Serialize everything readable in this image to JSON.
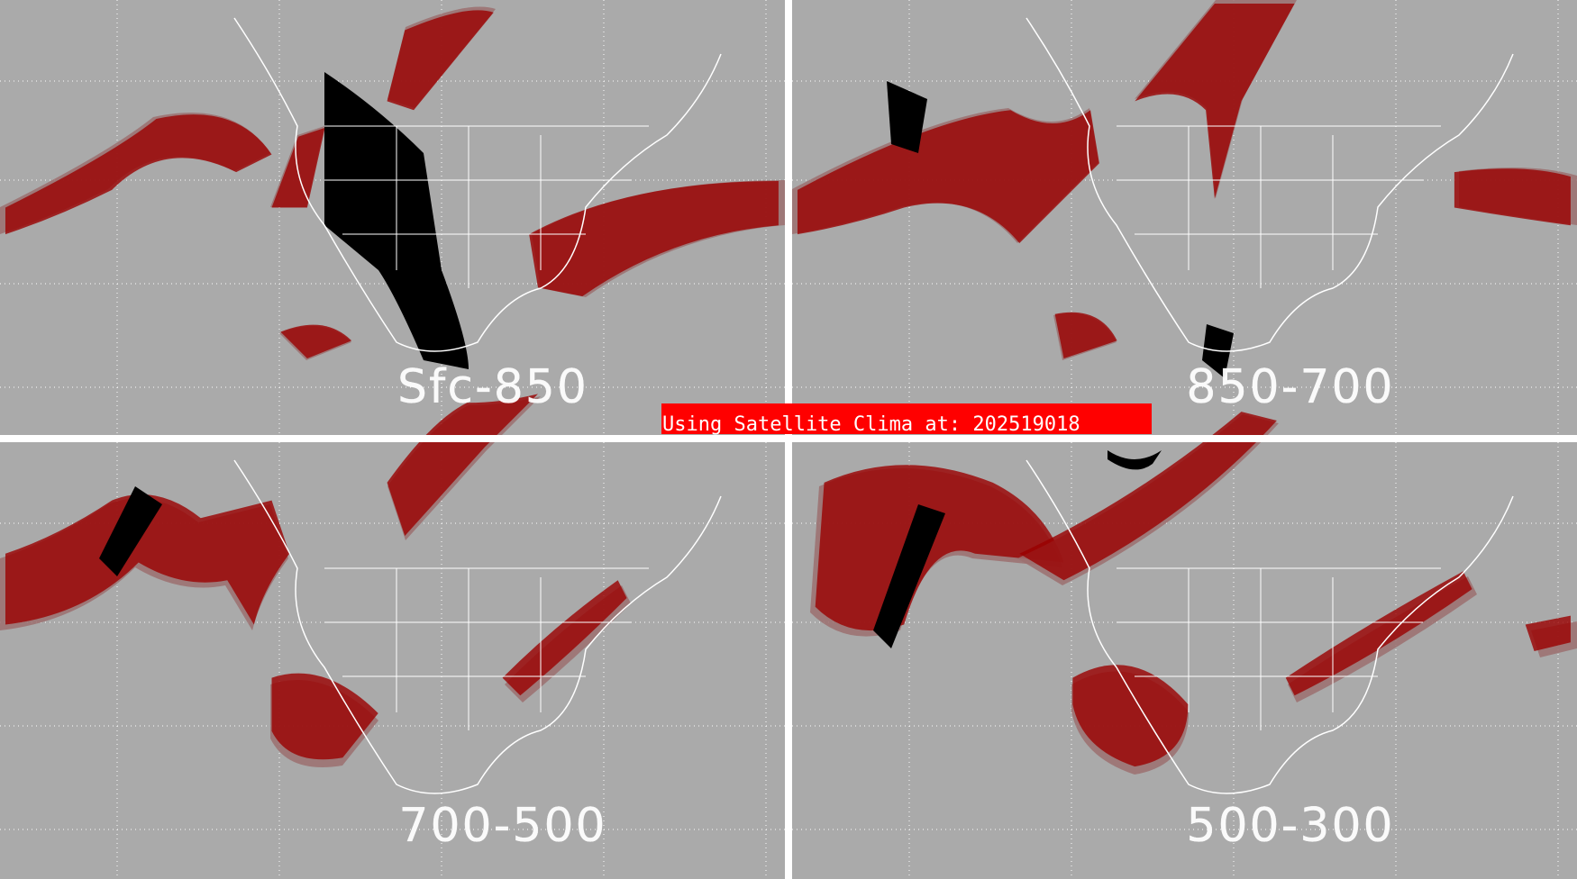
{
  "panels": [
    {
      "id": "sfc-850",
      "label": "Sfc-850"
    },
    {
      "id": "850-700",
      "label": "850-700"
    },
    {
      "id": "700-500",
      "label": "700-500"
    },
    {
      "id": "500-300",
      "label": "500-300"
    }
  ],
  "banner": {
    "text": "Using Satellite Clima at: 202519018"
  },
  "colors": {
    "background": "#aaaaaa",
    "moist_high": "#9a0000",
    "moist_mid": "#9c7070",
    "moist_peak": "#ffb0b0",
    "dry": "#000000",
    "coast": "#ffffff",
    "banner": "#ff0000"
  }
}
